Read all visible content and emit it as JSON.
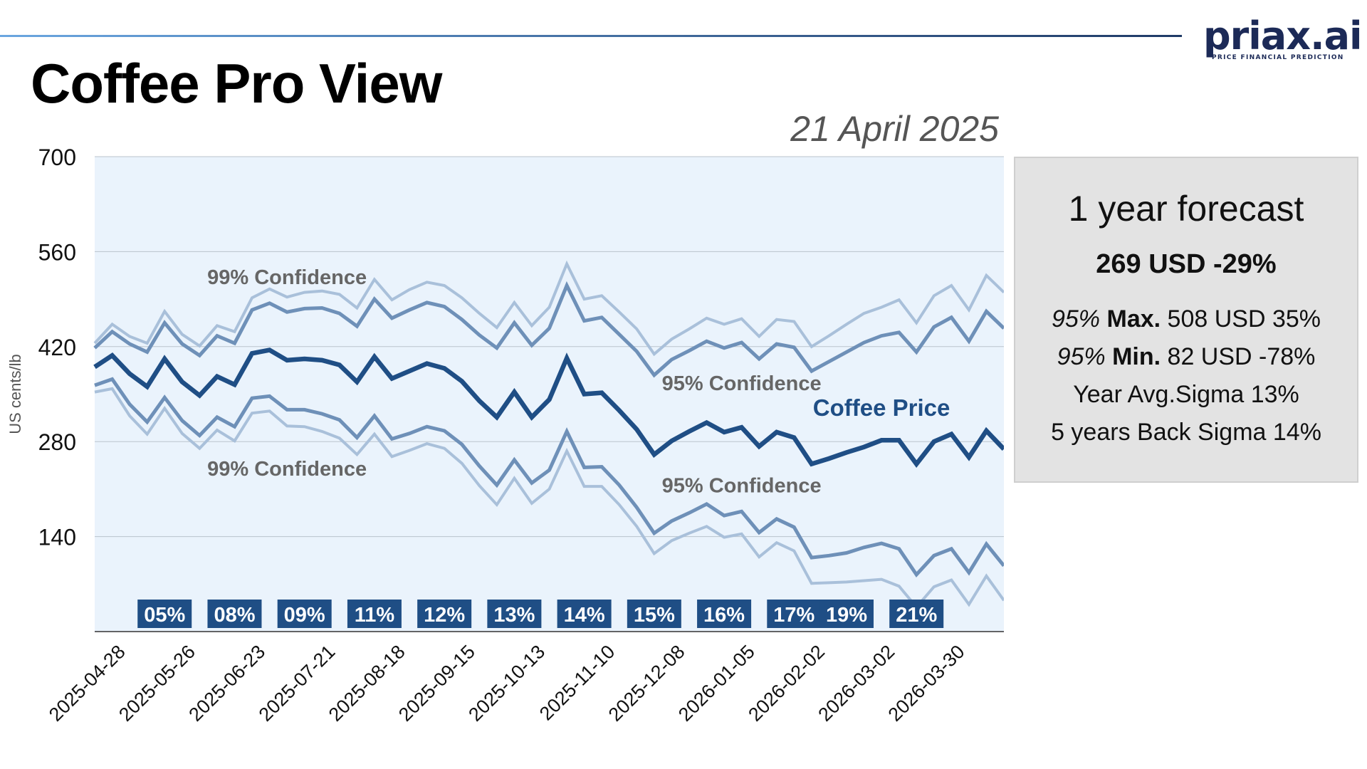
{
  "header": {
    "title": "Coffee Pro View",
    "date": "21 April 2025",
    "logo_main": "priax.ai",
    "logo_sub": "PRICE FINANCIAL PREDICTION"
  },
  "forecast": {
    "title": "1 year forecast",
    "headline": "269 USD -29%",
    "max_prefix": "95%",
    "max_label": "Max.",
    "max_value": "508 USD 35%",
    "min_prefix": "95%",
    "min_label": "Min.",
    "min_value": "82 USD -78%",
    "year_avg_sigma": "Year Avg.Sigma 13%",
    "five_year_sigma": "5 years Back Sigma 14%"
  },
  "colors": {
    "price": "#1f4e85",
    "band95": "#6e90b8",
    "band99": "#a9c0da",
    "plot_bg": "#eaf3fc",
    "badge": "#1f4e85",
    "confidence_label": "#666666"
  },
  "chart_data": {
    "type": "line",
    "title": "",
    "ylabel": "US cents/lb",
    "xlabel": "",
    "ylim": [
      0,
      700
    ],
    "yticks": [
      140,
      280,
      420,
      560,
      700
    ],
    "xtick_labels": [
      "2025-04-28",
      "2025-05-26",
      "2025-06-23",
      "2025-07-21",
      "2025-08-18",
      "2025-09-15",
      "2025-10-13",
      "2025-11-10",
      "2025-12-08",
      "2026-01-05",
      "2026-02-02",
      "2026-03-02",
      "2026-03-30"
    ],
    "x": [
      "2025-04-21",
      "2025-04-28",
      "2025-05-05",
      "2025-05-12",
      "2025-05-19",
      "2025-05-26",
      "2025-06-02",
      "2025-06-09",
      "2025-06-16",
      "2025-06-23",
      "2025-06-30",
      "2025-07-07",
      "2025-07-14",
      "2025-07-21",
      "2025-07-28",
      "2025-08-04",
      "2025-08-11",
      "2025-08-18",
      "2025-08-25",
      "2025-09-01",
      "2025-09-08",
      "2025-09-15",
      "2025-09-22",
      "2025-09-29",
      "2025-10-06",
      "2025-10-13",
      "2025-10-20",
      "2025-10-27",
      "2025-11-03",
      "2025-11-10",
      "2025-11-17",
      "2025-11-24",
      "2025-12-01",
      "2025-12-08",
      "2025-12-15",
      "2025-12-22",
      "2025-12-29",
      "2026-01-05",
      "2026-01-12",
      "2026-01-19",
      "2026-01-26",
      "2026-02-02",
      "2026-02-09",
      "2026-02-16",
      "2026-02-23",
      "2026-03-02",
      "2026-03-09",
      "2026-03-16",
      "2026-03-23",
      "2026-03-30",
      "2026-04-06",
      "2026-04-13",
      "2026-04-20"
    ],
    "series": [
      {
        "name": "Coffee Price",
        "style": "price",
        "values": [
          390,
          407,
          380,
          361,
          402,
          368,
          348,
          376,
          364,
          410,
          415,
          400,
          402,
          400,
          393,
          368,
          405,
          373,
          384,
          395,
          388,
          369,
          340,
          316,
          353,
          316,
          342,
          403,
          350,
          352,
          326,
          298,
          261,
          281,
          295,
          308,
          294,
          301,
          273,
          294,
          286,
          247,
          255,
          264,
          272,
          282,
          282,
          247,
          280,
          291,
          257,
          296,
          269
        ]
      },
      {
        "name": "95% upper",
        "style": "band95",
        "values": [
          418,
          442,
          424,
          412,
          455,
          424,
          407,
          436,
          425,
          474,
          484,
          471,
          476,
          477,
          469,
          450,
          490,
          462,
          474,
          485,
          479,
          460,
          437,
          418,
          455,
          422,
          447,
          510,
          458,
          463,
          438,
          413,
          378,
          401,
          414,
          428,
          418,
          426,
          402,
          424,
          419,
          384,
          398,
          412,
          426,
          436,
          441,
          412,
          449,
          463,
          428,
          472,
          447
        ]
      },
      {
        "name": "99% upper",
        "style": "band99",
        "values": [
          425,
          453,
          435,
          425,
          472,
          438,
          421,
          451,
          442,
          492,
          505,
          493,
          500,
          502,
          497,
          477,
          519,
          489,
          504,
          515,
          510,
          492,
          469,
          448,
          485,
          451,
          478,
          542,
          490,
          495,
          471,
          446,
          409,
          431,
          446,
          462,
          453,
          461,
          435,
          460,
          457,
          420,
          436,
          453,
          469,
          478,
          489,
          455,
          495,
          510,
          474,
          525,
          500
        ]
      },
      {
        "name": "95% lower",
        "style": "band95",
        "values": [
          363,
          372,
          335,
          309,
          345,
          311,
          289,
          316,
          302,
          344,
          347,
          327,
          327,
          321,
          312,
          286,
          318,
          284,
          292,
          302,
          296,
          276,
          244,
          216,
          253,
          219,
          238,
          295,
          242,
          243,
          216,
          183,
          145,
          163,
          175,
          188,
          171,
          177,
          146,
          166,
          154,
          109,
          112,
          116,
          124,
          130,
          122,
          84,
          112,
          122,
          87,
          129,
          97
        ]
      },
      {
        "name": "99% lower",
        "style": "band99",
        "values": [
          353,
          358,
          318,
          291,
          329,
          292,
          270,
          297,
          281,
          322,
          325,
          303,
          302,
          295,
          285,
          261,
          291,
          258,
          267,
          277,
          270,
          248,
          215,
          187,
          226,
          189,
          210,
          266,
          214,
          214,
          187,
          155,
          115,
          134,
          145,
          155,
          139,
          144,
          110,
          131,
          119,
          71,
          72,
          73,
          75,
          77,
          67,
          36,
          66,
          76,
          40,
          82,
          46
        ]
      }
    ],
    "band_labels": [
      {
        "text": "99% Confidence",
        "x": "2025-07-07",
        "y": 512
      },
      {
        "text": "99% Confidence",
        "x": "2025-07-07",
        "y": 230
      },
      {
        "text": "95% Confidence",
        "x": "2026-01-05",
        "y": 356
      },
      {
        "text": "95% Confidence",
        "x": "2026-01-05",
        "y": 205
      }
    ],
    "price_label": {
      "text": "Coffee Price",
      "x": "2026-03-02",
      "y": 318
    },
    "sigma_badges": [
      {
        "text": "05%",
        "x": "2025-05-19"
      },
      {
        "text": "08%",
        "x": "2025-06-16"
      },
      {
        "text": "09%",
        "x": "2025-07-14"
      },
      {
        "text": "11%",
        "x": "2025-08-11"
      },
      {
        "text": "12%",
        "x": "2025-09-08"
      },
      {
        "text": "13%",
        "x": "2025-10-06"
      },
      {
        "text": "14%",
        "x": "2025-11-03"
      },
      {
        "text": "15%",
        "x": "2025-12-01"
      },
      {
        "text": "16%",
        "x": "2025-12-29"
      },
      {
        "text": "17%",
        "x": "2026-01-26"
      },
      {
        "text": "19%",
        "x": "2026-02-16"
      },
      {
        "text": "21%",
        "x": "2026-03-16"
      }
    ],
    "grid": true,
    "legend": "none"
  }
}
